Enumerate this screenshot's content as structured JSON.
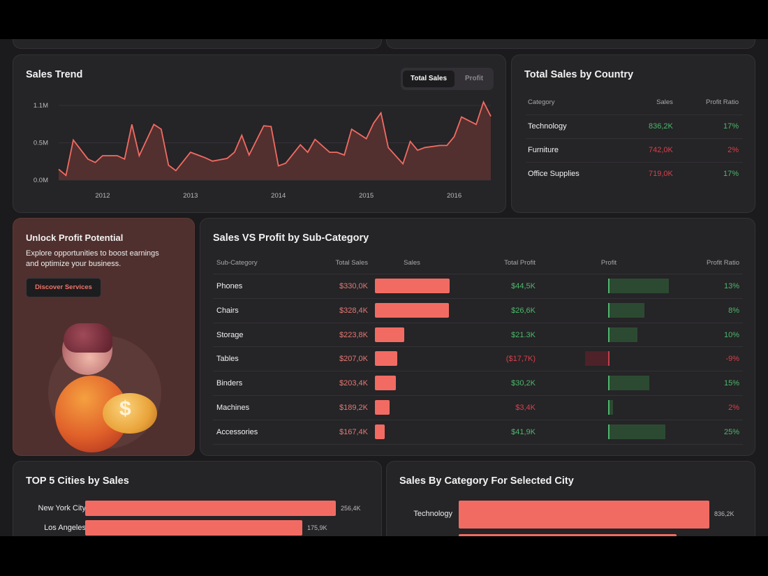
{
  "sales_trend": {
    "title": "Sales Trend",
    "toggle": {
      "active": "Total Sales",
      "inactive": "Profit"
    },
    "chart_data": {
      "type": "area",
      "title": "Sales Trend",
      "x": [
        "2011-07",
        "2011-08",
        "2011-09",
        "2011-11",
        "2011-12",
        "2012-01",
        "2012-03",
        "2012-04",
        "2012-05",
        "2012-06",
        "2012-08",
        "2012-09",
        "2012-10",
        "2012-11",
        "2013-01",
        "2013-02",
        "2013-03",
        "2013-04",
        "2013-06",
        "2013-07",
        "2013-08",
        "2013-09",
        "2013-11",
        "2013-12",
        "2014-01",
        "2014-02",
        "2014-04",
        "2014-05",
        "2014-06",
        "2014-08",
        "2014-09",
        "2014-10",
        "2014-11",
        "2015-01",
        "2015-02",
        "2015-03",
        "2015-04",
        "2015-06",
        "2015-07",
        "2015-08",
        "2015-09",
        "2015-11",
        "2015-12",
        "2016-01",
        "2016-02",
        "2016-04",
        "2016-05",
        "2016-06"
      ],
      "values": [
        0.16,
        0.07,
        0.59,
        0.31,
        0.26,
        0.36,
        0.36,
        0.31,
        0.82,
        0.36,
        0.82,
        0.75,
        0.22,
        0.14,
        0.41,
        0.37,
        0.33,
        0.28,
        0.32,
        0.41,
        0.66,
        0.37,
        0.8,
        0.79,
        0.21,
        0.25,
        0.52,
        0.41,
        0.6,
        0.41,
        0.41,
        0.37,
        0.75,
        0.61,
        0.84,
        0.99,
        0.48,
        0.24,
        0.57,
        0.44,
        0.48,
        0.51,
        0.51,
        0.64,
        0.93,
        0.82,
        1.15,
        0.94
      ],
      "y_unit": "M",
      "yticks": [
        0,
        0.55,
        1.1
      ],
      "ytick_labels": [
        "0.0M",
        "0.5M",
        "1.1M"
      ],
      "xtick_labels": [
        "2012",
        "2013",
        "2014",
        "2015",
        "2016"
      ],
      "ylim": [
        0,
        1.1
      ],
      "grid": true,
      "color": "#f26b62"
    }
  },
  "country": {
    "title": "Total Sales by Country",
    "headers": [
      "Category",
      "Sales",
      "Profit Ratio"
    ],
    "rows": [
      {
        "category": "Technology",
        "sales": "836,2K",
        "ratio": "17%",
        "sales_pos": true,
        "ratio_pos": true
      },
      {
        "category": "Furniture",
        "sales": "742,0K",
        "ratio": "2%",
        "sales_pos": false,
        "ratio_pos": false
      },
      {
        "category": "Office Supplies",
        "sales": "719,0K",
        "ratio": "17%",
        "sales_pos": false,
        "ratio_pos": true
      }
    ]
  },
  "promo": {
    "title": "Unlock Profit Potential",
    "text": "Explore opportunities to boost earnings and optimize your business.",
    "button": "Discover Services"
  },
  "subcat": {
    "title": "Sales VS Profit by Sub-Category",
    "headers": [
      "Sub-Category",
      "Total Sales",
      "Sales",
      "Total Profit",
      "Profit",
      "Profit Ratio"
    ],
    "rows": [
      {
        "name": "Phones",
        "sales": "$330,0K",
        "sales_k": 330.0,
        "profit": "$44,5K",
        "profit_k": 44.5,
        "ratio": "13%",
        "ratio_pos": true
      },
      {
        "name": "Chairs",
        "sales": "$328,4K",
        "sales_k": 328.4,
        "profit": "$26,6K",
        "profit_k": 26.6,
        "ratio": "8%",
        "ratio_pos": true
      },
      {
        "name": "Storage",
        "sales": "$223,8K",
        "sales_k": 223.8,
        "profit": "$21.3K",
        "profit_k": 21.3,
        "ratio": "10%",
        "ratio_pos": true
      },
      {
        "name": "Tables",
        "sales": "$207,0K",
        "sales_k": 207.0,
        "profit": "($17,7K)",
        "profit_k": -17.7,
        "ratio": "-9%",
        "ratio_pos": false
      },
      {
        "name": "Binders",
        "sales": "$203,4K",
        "sales_k": 203.4,
        "profit": "$30,2K",
        "profit_k": 30.2,
        "ratio": "15%",
        "ratio_pos": true
      },
      {
        "name": "Machines",
        "sales": "$189,2K",
        "sales_k": 189.2,
        "profit": "$3,4K",
        "profit_k": 3.4,
        "ratio": "2%",
        "ratio_pos": false
      },
      {
        "name": "Accessories",
        "sales": "$167,4K",
        "sales_k": 167.4,
        "profit": "$41,9K",
        "profit_k": 41.9,
        "ratio": "25%",
        "ratio_pos": true
      }
    ]
  },
  "top_cities": {
    "title": "TOP 5 Cities by Sales",
    "chart_data": {
      "type": "bar",
      "orientation": "horizontal",
      "categories": [
        "New York City",
        "Los Angeles"
      ],
      "values": [
        256.4,
        175.9
      ],
      "labels": [
        "256,4K",
        "175,9K"
      ],
      "color": "#f26b62"
    }
  },
  "city_category": {
    "title": "Sales By Category For Selected City",
    "chart_data": {
      "type": "bar",
      "orientation": "horizontal",
      "categories": [
        "Technology"
      ],
      "values": [
        836.2
      ],
      "labels": [
        "836,2K"
      ],
      "color": "#f26b62"
    }
  }
}
